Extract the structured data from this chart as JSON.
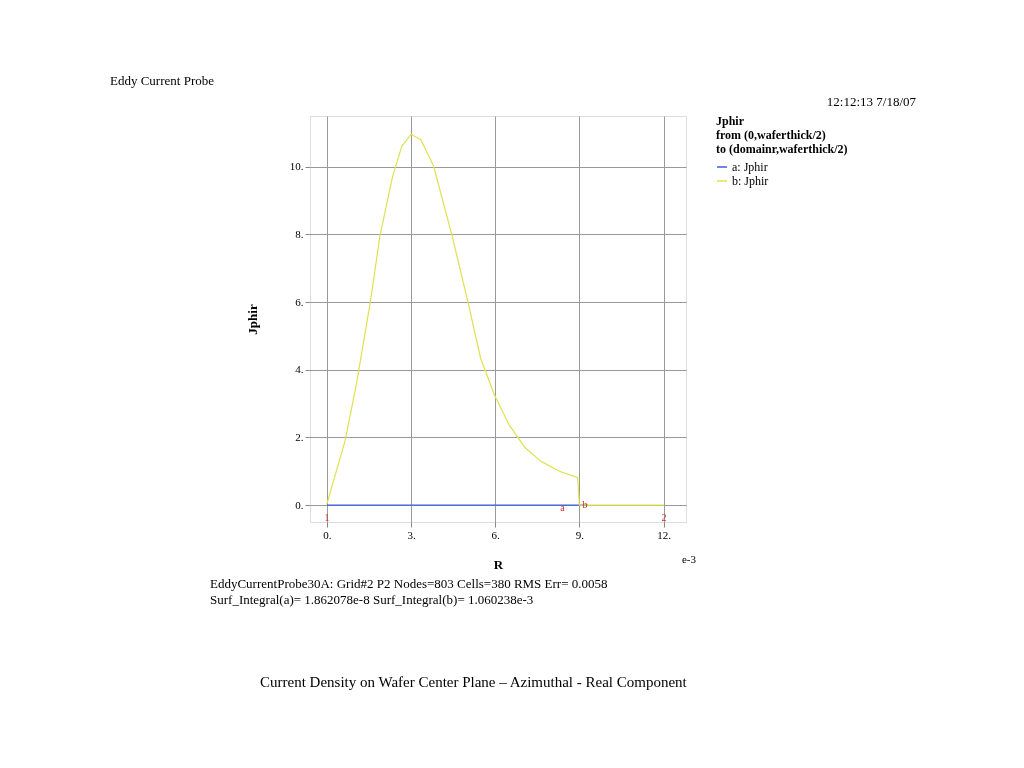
{
  "chart_data": {
    "type": "line",
    "title": "Eddy Current Probe",
    "xlabel": "R",
    "ylabel": "Jphir",
    "legend_title": "Jphir\nfrom (0,waferthick/2)\nto (domainr,waferthick/2)",
    "xlim": [
      -0.6,
      12.8
    ],
    "ylim": [
      -0.5,
      11.5
    ],
    "xticks": [
      {
        "value": 0,
        "label": "0."
      },
      {
        "value": 3,
        "label": "3."
      },
      {
        "value": 6,
        "label": "6."
      },
      {
        "value": 9,
        "label": "9."
      },
      {
        "value": 12,
        "label": "12."
      }
    ],
    "yticks": [
      {
        "value": 0,
        "label": "0."
      },
      {
        "value": 2,
        "label": "2."
      },
      {
        "value": 4,
        "label": "4."
      },
      {
        "value": 6,
        "label": "6."
      },
      {
        "value": 8,
        "label": "8."
      },
      {
        "value": 10,
        "label": "10."
      }
    ],
    "grid": true,
    "legend": "right",
    "series": [
      {
        "name": "a: Jphir",
        "color": "#3a5fe0",
        "x": [
          0,
          9.3
        ],
        "values": [
          0,
          0
        ]
      },
      {
        "name": "b: Jphir",
        "color": "#e0e050",
        "x": [
          0,
          0.65,
          1.05,
          1.55,
          1.89,
          2.34,
          2.67,
          3.0,
          3.35,
          3.8,
          4.47,
          5.03,
          5.48,
          5.97,
          6.49,
          7.06,
          7.62,
          8.29,
          8.94,
          9.0,
          9.2,
          12
        ],
        "values": [
          0.03,
          1.9,
          3.56,
          6.0,
          7.94,
          9.7,
          10.6,
          10.96,
          10.8,
          10.03,
          7.94,
          6.0,
          4.34,
          3.26,
          2.38,
          1.7,
          1.3,
          1.0,
          0.81,
          0,
          0,
          0
        ]
      }
    ],
    "annotations": [
      "12:12:13 7/18/07",
      "e-3",
      "EddyCurrentProbe30A:  Grid#2  P2  Nodes=803  Cells=380 RMS Err= 0.0058",
      "Surf_Integral(a)=  1.862078e-8 Surf_Integral(b)=  1.060238e-3",
      "Current Density on Wafer Center Plane – Azimuthal - Real Component",
      {
        "text": "a",
        "x": 8.4,
        "y": -0.1
      },
      {
        "text": "b",
        "x": 9.2,
        "y": 0
      },
      "1",
      "2"
    ]
  }
}
